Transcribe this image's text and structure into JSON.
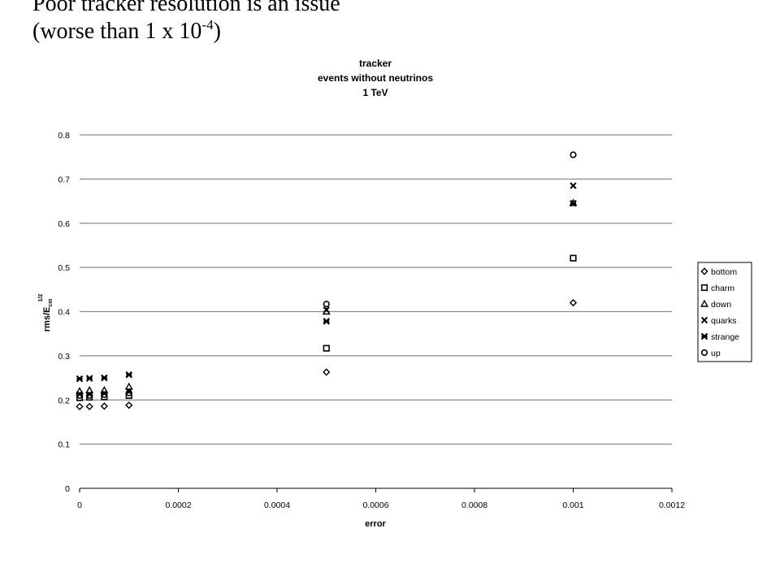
{
  "slide": {
    "title_line1": "Poor tracker resolution is an issue",
    "title_line2_prefix": "(worse than 1 x 10",
    "title_line2_exponent": "-4",
    "title_line2_suffix": ")"
  },
  "chart_data": {
    "type": "scatter",
    "title": [
      "tracker",
      "events without neutrinos",
      "1 TeV"
    ],
    "xlabel": "error",
    "ylabel": {
      "main": "rms/E",
      "sub": "cm",
      "sup": "1/2"
    },
    "xlim": [
      0,
      0.0012
    ],
    "ylim": [
      0,
      0.8
    ],
    "xticks": [
      "0",
      "0.0002",
      "0.0004",
      "0.0006",
      "0.0008",
      "0.001",
      "0.0012"
    ],
    "yticks": [
      "0",
      "0.1",
      "0.2",
      "0.3",
      "0.4",
      "0.5",
      "0.6",
      "0.7",
      "0.8"
    ],
    "grid": "horizontal",
    "legend_position": "right",
    "series": [
      {
        "name": "bottom",
        "marker": "diamond",
        "x": [
          0,
          2e-05,
          5e-05,
          0.0001,
          0.0005,
          0.001
        ],
        "y": [
          0.185,
          0.185,
          0.186,
          0.188,
          0.263,
          0.42
        ]
      },
      {
        "name": "charm",
        "marker": "square",
        "x": [
          0,
          2e-05,
          5e-05,
          0.0001,
          0.0005,
          0.001
        ],
        "y": [
          0.205,
          0.206,
          0.207,
          0.21,
          0.317,
          0.521
        ]
      },
      {
        "name": "down",
        "marker": "triangle",
        "x": [
          0,
          2e-05,
          5e-05,
          0.0001,
          0.0005,
          0.001
        ],
        "y": [
          0.22,
          0.222,
          0.222,
          0.23,
          0.4,
          0.646
        ]
      },
      {
        "name": "quarks",
        "marker": "x",
        "x": [
          0,
          2e-05,
          5e-05,
          0.0001,
          0.0005,
          0.001
        ],
        "y": [
          0.213,
          0.213,
          0.215,
          0.22,
          0.404,
          0.685
        ]
      },
      {
        "name": "strange",
        "marker": "star",
        "x": [
          0,
          2e-05,
          5e-05,
          0.0001,
          0.0005,
          0.001
        ],
        "y": [
          0.248,
          0.249,
          0.25,
          0.257,
          0.378,
          0.645
        ]
      },
      {
        "name": "up",
        "marker": "circle",
        "x": [
          0,
          2e-05,
          5e-05,
          0.0001,
          0.0005,
          0.001
        ],
        "y": [
          0.21,
          0.21,
          0.212,
          0.216,
          0.417,
          0.755
        ]
      }
    ]
  }
}
